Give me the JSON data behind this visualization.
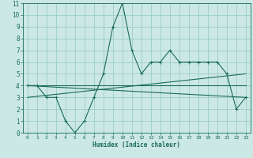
{
  "xlabel": "Humidex (Indice chaleur)",
  "bg_color": "#cce8e4",
  "grid_color": "#99cccc",
  "line_color": "#1a6b5a",
  "xlim": [
    -0.5,
    23.5
  ],
  "ylim": [
    0,
    11
  ],
  "xticks": [
    0,
    1,
    2,
    3,
    4,
    5,
    6,
    7,
    8,
    9,
    10,
    11,
    12,
    13,
    14,
    15,
    16,
    17,
    18,
    19,
    20,
    21,
    22,
    23
  ],
  "yticks": [
    0,
    1,
    2,
    3,
    4,
    5,
    6,
    7,
    8,
    9,
    10,
    11
  ],
  "main_x": [
    0,
    1,
    2,
    3,
    4,
    5,
    6,
    7,
    8,
    9,
    10,
    11,
    12,
    13,
    14,
    15,
    16,
    17,
    18,
    19,
    20,
    21,
    22,
    23
  ],
  "main_y": [
    4,
    4,
    3,
    3,
    1,
    0,
    1,
    3,
    5,
    9,
    11,
    7,
    5,
    6,
    6,
    7,
    6,
    6,
    6,
    6,
    6,
    5,
    2,
    3
  ],
  "trend1_x": [
    0,
    23
  ],
  "trend1_y": [
    4,
    3
  ],
  "trend2_x": [
    0,
    23
  ],
  "trend2_y": [
    3,
    5
  ],
  "trend3_x": [
    0,
    23
  ],
  "trend3_y": [
    4,
    4
  ]
}
